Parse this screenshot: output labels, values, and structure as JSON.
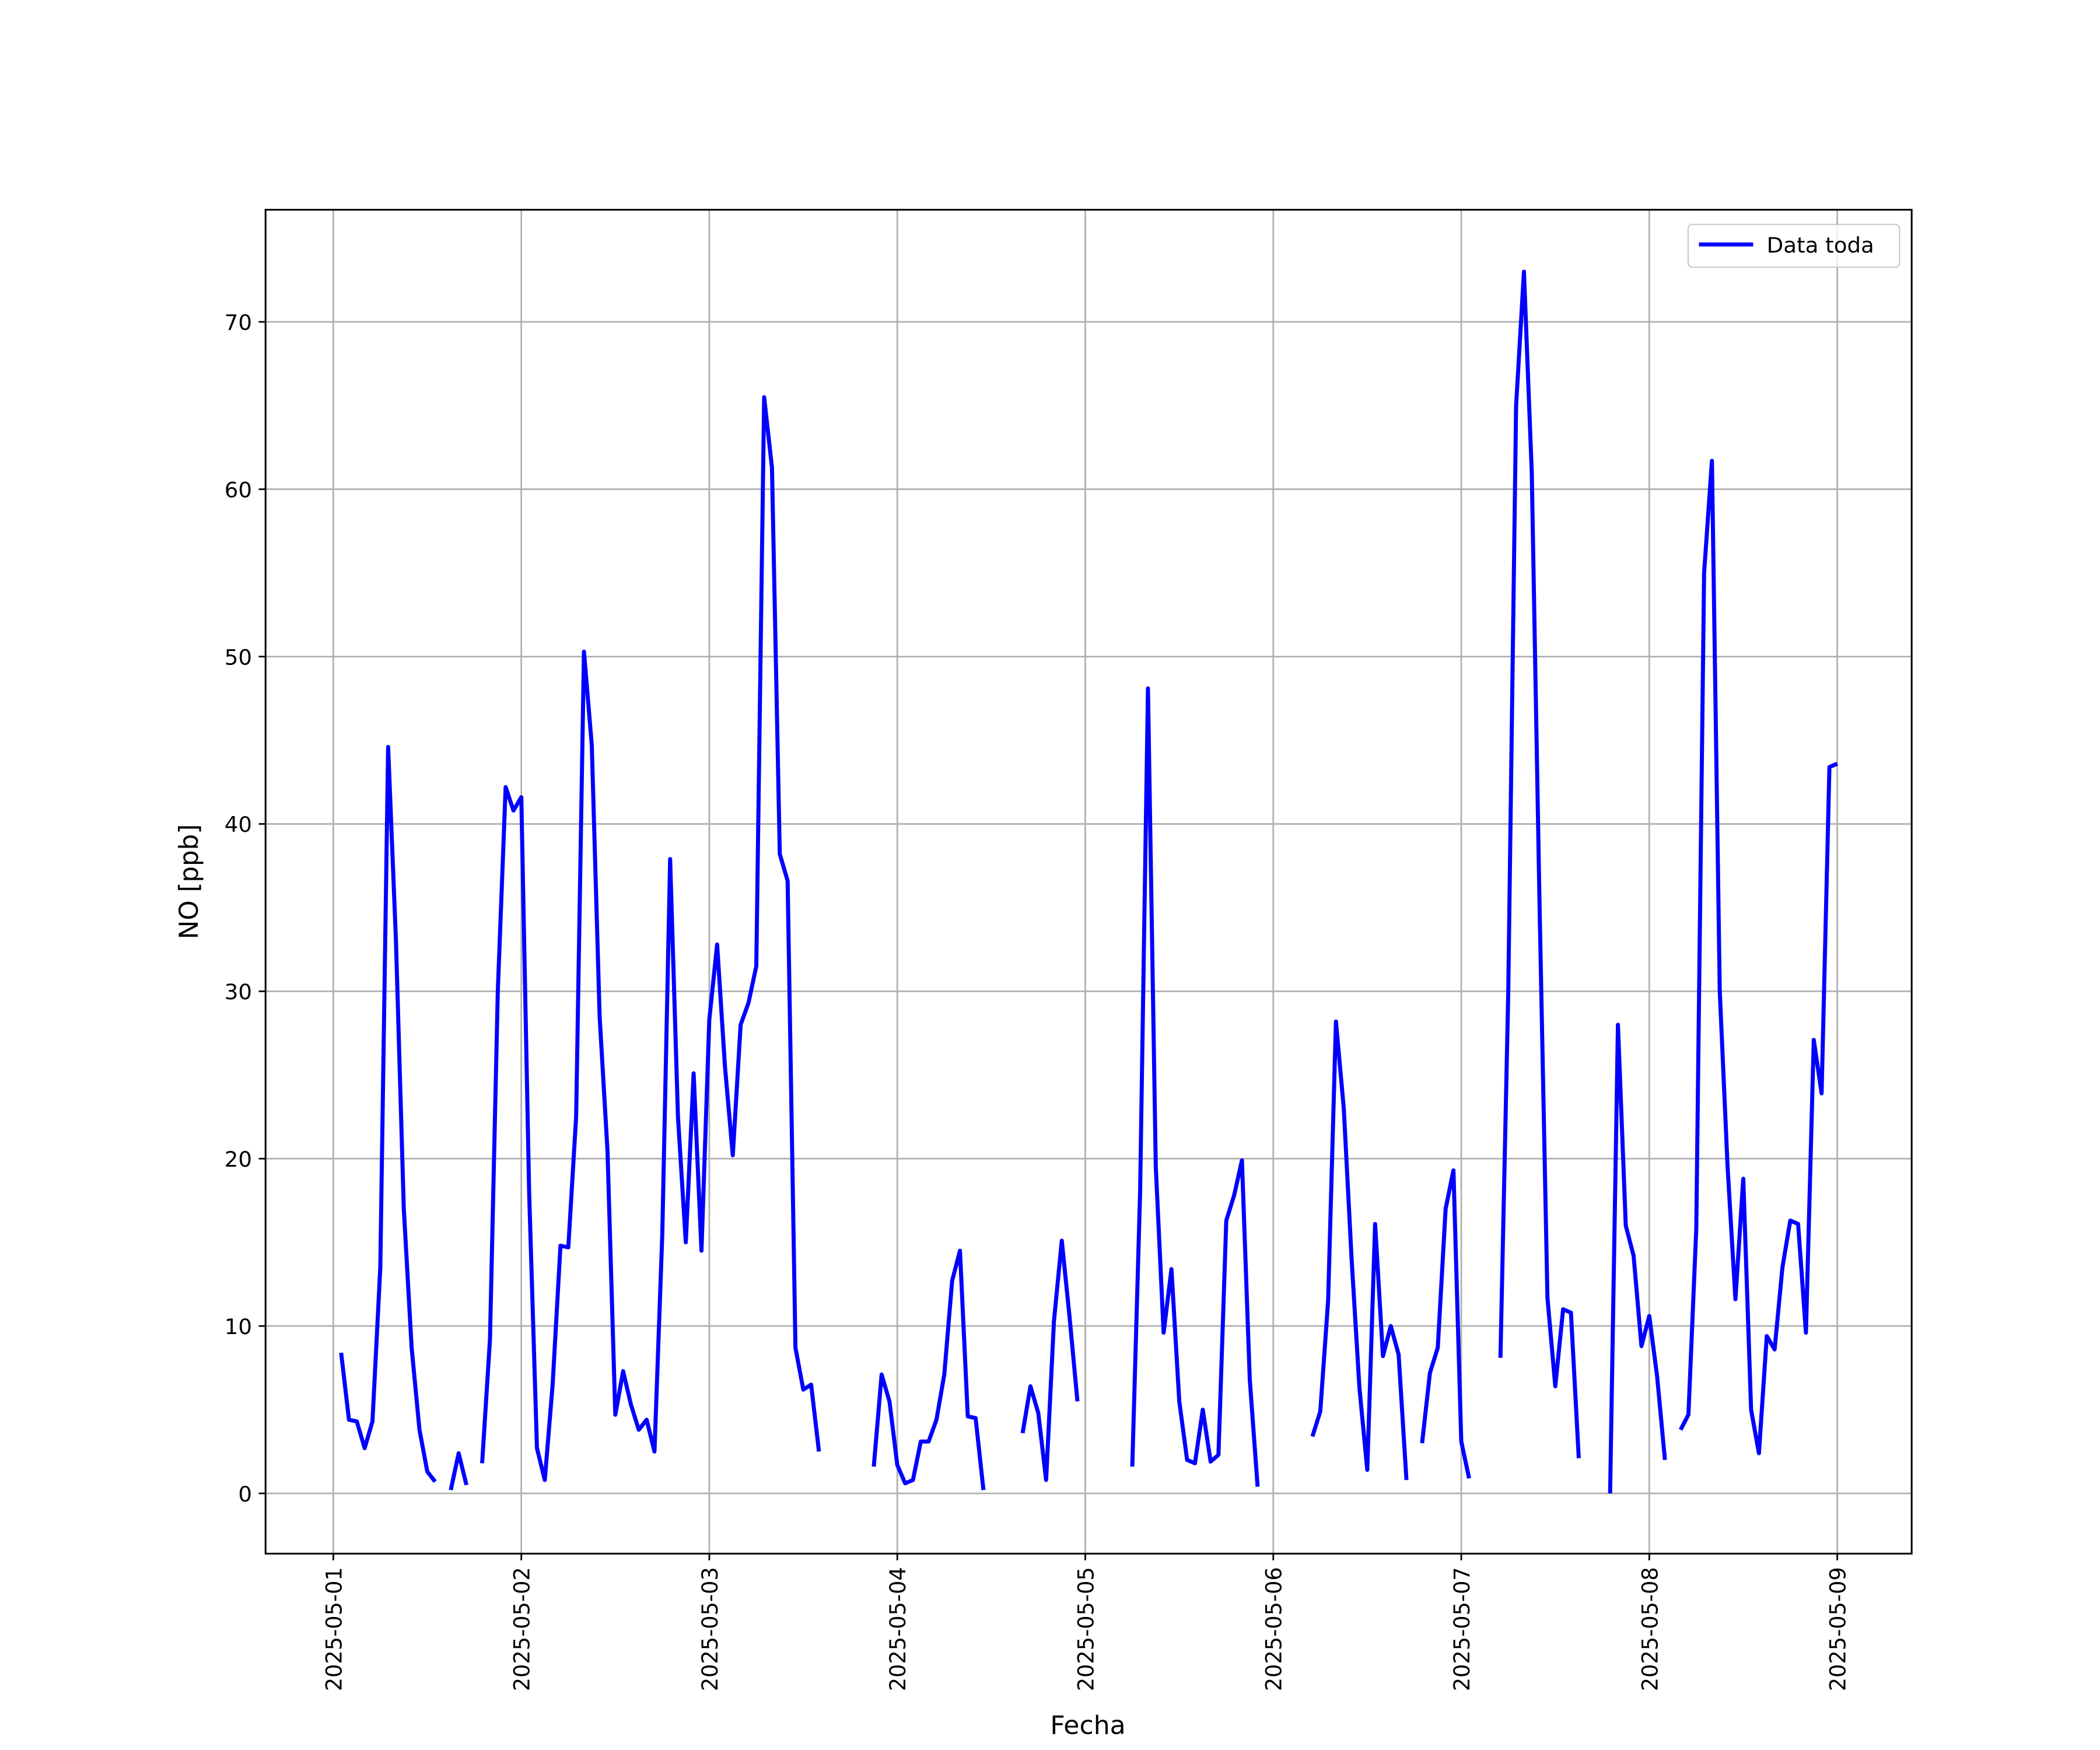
{
  "chart_data": {
    "type": "line",
    "x_label": "Fecha",
    "y_label": "NO [ppb]",
    "x": [
      "2025-05-01 01:00",
      "2025-05-01 02:00",
      "2025-05-01 03:00",
      "2025-05-01 04:00",
      "2025-05-01 05:00",
      "2025-05-01 06:00",
      "2025-05-01 07:00",
      "2025-05-01 08:00",
      "2025-05-01 09:00",
      "2025-05-01 10:00",
      "2025-05-01 11:00",
      "2025-05-01 12:00",
      "2025-05-01 13:00",
      "2025-05-01 14:00",
      "2025-05-01 15:00",
      "2025-05-01 16:00",
      "2025-05-01 17:00",
      "2025-05-01 18:00",
      "2025-05-01 19:00",
      "2025-05-01 20:00",
      "2025-05-01 21:00",
      "2025-05-01 22:00",
      "2025-05-01 23:00",
      "2025-05-02 00:00",
      "2025-05-02 01:00",
      "2025-05-02 02:00",
      "2025-05-02 03:00",
      "2025-05-02 04:00",
      "2025-05-02 05:00",
      "2025-05-02 06:00",
      "2025-05-02 07:00",
      "2025-05-02 08:00",
      "2025-05-02 09:00",
      "2025-05-02 10:00",
      "2025-05-02 11:00",
      "2025-05-02 12:00",
      "2025-05-02 13:00",
      "2025-05-02 14:00",
      "2025-05-02 15:00",
      "2025-05-02 16:00",
      "2025-05-02 17:00",
      "2025-05-02 18:00",
      "2025-05-02 19:00",
      "2025-05-02 20:00",
      "2025-05-02 21:00",
      "2025-05-02 22:00",
      "2025-05-02 23:00",
      "2025-05-03 00:00",
      "2025-05-03 01:00",
      "2025-05-03 02:00",
      "2025-05-03 03:00",
      "2025-05-03 04:00",
      "2025-05-03 05:00",
      "2025-05-03 06:00",
      "2025-05-03 07:00",
      "2025-05-03 08:00",
      "2025-05-03 09:00",
      "2025-05-03 10:00",
      "2025-05-03 11:00",
      "2025-05-03 12:00",
      "2025-05-03 13:00",
      "2025-05-03 14:00",
      "2025-05-03 15:00",
      "2025-05-03 16:00",
      "2025-05-03 17:00",
      "2025-05-03 18:00",
      "2025-05-03 19:00",
      "2025-05-03 20:00",
      "2025-05-03 21:00",
      "2025-05-03 22:00",
      "2025-05-03 23:00",
      "2025-05-04 00:00",
      "2025-05-04 01:00",
      "2025-05-04 02:00",
      "2025-05-04 03:00",
      "2025-05-04 04:00",
      "2025-05-04 05:00",
      "2025-05-04 06:00",
      "2025-05-04 07:00",
      "2025-05-04 08:00",
      "2025-05-04 09:00",
      "2025-05-04 10:00",
      "2025-05-04 11:00",
      "2025-05-04 12:00",
      "2025-05-04 13:00",
      "2025-05-04 14:00",
      "2025-05-04 15:00",
      "2025-05-04 16:00",
      "2025-05-04 17:00",
      "2025-05-04 18:00",
      "2025-05-04 19:00",
      "2025-05-04 20:00",
      "2025-05-04 21:00",
      "2025-05-04 22:00",
      "2025-05-04 23:00",
      "2025-05-05 00:00",
      "2025-05-05 01:00",
      "2025-05-05 02:00",
      "2025-05-05 03:00",
      "2025-05-05 04:00",
      "2025-05-05 05:00",
      "2025-05-05 06:00",
      "2025-05-05 07:00",
      "2025-05-05 08:00",
      "2025-05-05 09:00",
      "2025-05-05 10:00",
      "2025-05-05 11:00",
      "2025-05-05 12:00",
      "2025-05-05 13:00",
      "2025-05-05 14:00",
      "2025-05-05 15:00",
      "2025-05-05 16:00",
      "2025-05-05 17:00",
      "2025-05-05 18:00",
      "2025-05-05 19:00",
      "2025-05-05 20:00",
      "2025-05-05 21:00",
      "2025-05-05 22:00",
      "2025-05-05 23:00",
      "2025-05-06 00:00",
      "2025-05-06 01:00",
      "2025-05-06 02:00",
      "2025-05-06 03:00",
      "2025-05-06 04:00",
      "2025-05-06 05:00",
      "2025-05-06 06:00",
      "2025-05-06 07:00",
      "2025-05-06 08:00",
      "2025-05-06 09:00",
      "2025-05-06 10:00",
      "2025-05-06 11:00",
      "2025-05-06 12:00",
      "2025-05-06 13:00",
      "2025-05-06 14:00",
      "2025-05-06 15:00",
      "2025-05-06 16:00",
      "2025-05-06 17:00",
      "2025-05-06 18:00",
      "2025-05-06 19:00",
      "2025-05-06 20:00",
      "2025-05-06 21:00",
      "2025-05-06 22:00",
      "2025-05-06 23:00",
      "2025-05-07 00:00",
      "2025-05-07 01:00",
      "2025-05-07 02:00",
      "2025-05-07 03:00",
      "2025-05-07 04:00",
      "2025-05-07 05:00",
      "2025-05-07 06:00",
      "2025-05-07 07:00",
      "2025-05-07 08:00",
      "2025-05-07 09:00",
      "2025-05-07 10:00",
      "2025-05-07 11:00",
      "2025-05-07 12:00",
      "2025-05-07 13:00",
      "2025-05-07 14:00",
      "2025-05-07 15:00",
      "2025-05-07 16:00",
      "2025-05-07 17:00",
      "2025-05-07 18:00",
      "2025-05-07 19:00",
      "2025-05-07 20:00",
      "2025-05-07 21:00",
      "2025-05-07 22:00",
      "2025-05-07 23:00",
      "2025-05-08 00:00",
      "2025-05-08 01:00",
      "2025-05-08 02:00",
      "2025-05-08 03:00",
      "2025-05-08 04:00",
      "2025-05-08 05:00",
      "2025-05-08 06:00",
      "2025-05-08 07:00",
      "2025-05-08 08:00",
      "2025-05-08 09:00",
      "2025-05-08 10:00",
      "2025-05-08 11:00",
      "2025-05-08 12:00",
      "2025-05-08 13:00",
      "2025-05-08 14:00",
      "2025-05-08 15:00",
      "2025-05-08 16:00",
      "2025-05-08 17:00",
      "2025-05-08 18:00",
      "2025-05-08 19:00",
      "2025-05-08 20:00",
      "2025-05-08 21:00",
      "2025-05-08 22:00",
      "2025-05-08 23:00",
      "2025-05-09 00:00"
    ],
    "series": [
      {
        "name": "Data toda",
        "color": "#0000ff",
        "values": [
          8.4,
          4.4,
          4.3,
          2.7,
          4.3,
          13.5,
          44.6,
          33,
          17,
          8.7,
          3.8,
          1.3,
          0.7,
          null,
          0.2,
          2.4,
          0.5,
          null,
          1.8,
          9.2,
          30,
          42.2,
          40.8,
          41.6,
          18,
          2.7,
          0.8,
          6.5,
          14.8,
          14.7,
          22.5,
          50.3,
          44.7,
          28.5,
          20.5,
          4.7,
          7.3,
          5.3,
          3.8,
          4.4,
          2.5,
          15.5,
          37.9,
          22.5,
          15,
          25.1,
          14.5,
          28.3,
          32.8,
          25.5,
          20.2,
          28,
          29.3,
          31.5,
          65.5,
          61.3,
          38.2,
          36.6,
          8.7,
          6.2,
          6.5,
          2.5,
          null,
          null,
          null,
          null,
          null,
          null,
          1.6,
          7.1,
          5.5,
          1.7,
          0.6,
          0.8,
          3.1,
          3.1,
          4.4,
          7.1,
          12.7,
          14.5,
          4.6,
          4.5,
          0.2,
          null,
          null,
          null,
          null,
          3.6,
          6.4,
          4.8,
          0.8,
          10.3,
          15.1,
          10.5,
          5.5,
          null,
          null,
          null,
          null,
          null,
          null,
          1.6,
          18,
          48.1,
          19.5,
          9.6,
          13.4,
          5.5,
          2,
          1.8,
          5,
          1.9,
          2.3,
          16.3,
          17.8,
          19.9,
          6.8,
          0.4,
          null,
          null,
          null,
          null,
          null,
          null,
          3.4,
          4.9,
          11.5,
          28.2,
          23,
          14,
          6.3,
          1.4,
          16.1,
          8.2,
          10,
          8.3,
          0.8,
          null,
          3,
          7.2,
          8.7,
          17,
          19.3,
          3.1,
          0.9,
          null,
          null,
          null,
          8.1,
          30,
          65,
          73,
          61,
          35,
          11.7,
          6.4,
          11,
          10.8,
          2.1,
          null,
          null,
          null,
          0,
          28,
          16,
          14.2,
          8.8,
          10.6,
          7,
          2,
          null,
          3.8,
          4.7,
          15.8,
          55,
          61.7,
          30,
          19.5,
          11.6,
          18.8,
          5,
          2.4,
          9.4,
          8.6,
          13.5,
          16.3,
          16.1,
          9.6,
          27.1,
          23.9,
          43.4,
          43.6
        ]
      }
    ],
    "xlim": [
      "2025-04-30 15:21",
      "2025-05-09 09:30"
    ],
    "xticks": [
      "2025-05-01",
      "2025-05-02",
      "2025-05-03",
      "2025-05-04",
      "2025-05-05",
      "2025-05-06",
      "2025-05-07",
      "2025-05-08",
      "2025-05-09"
    ],
    "ylim": [
      -3.6,
      76.7
    ],
    "yticks": [
      0,
      10,
      20,
      30,
      40,
      50,
      60,
      70
    ],
    "grid": true,
    "legend": "upper right"
  }
}
